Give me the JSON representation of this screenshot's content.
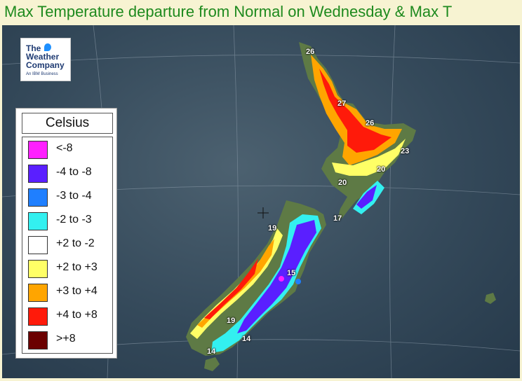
{
  "header": {
    "title": "Max Temperature departure from Normal on Wednesday & Max T"
  },
  "logo": {
    "line1": "The",
    "line2": "Weather",
    "line3": "Company",
    "sub": "An IBM Business"
  },
  "legend": {
    "title": "Celsius",
    "items": [
      {
        "label": "<-8",
        "color": "#ff1fff"
      },
      {
        "label": "-4 to -8",
        "color": "#5a1fff"
      },
      {
        "label": "-3 to -4",
        "color": "#1f7fff"
      },
      {
        "label": "-2 to -3",
        "color": "#33f0f0"
      },
      {
        "label": "+2 to -2",
        "color": "#ffffff"
      },
      {
        "label": "+2 to +3",
        "color": "#ffff66"
      },
      {
        "label": "+3 to +4",
        "color": "#ffa500"
      },
      {
        "label": "+4 to +8",
        "color": "#ff1a0a"
      },
      {
        "label": ">+8",
        "color": "#6b0000"
      }
    ]
  },
  "city_temps": [
    {
      "name": "northland",
      "value": "26"
    },
    {
      "name": "auckland",
      "value": "27"
    },
    {
      "name": "waikato",
      "value": "26"
    },
    {
      "name": "gisborne",
      "value": "23"
    },
    {
      "name": "hawkes-bay",
      "value": "20"
    },
    {
      "name": "taranaki",
      "value": "20"
    },
    {
      "name": "wellington",
      "value": "17"
    },
    {
      "name": "nelson",
      "value": "19"
    },
    {
      "name": "christchurch",
      "value": "15"
    },
    {
      "name": "westland",
      "value": "19"
    },
    {
      "name": "dunedin",
      "value": "14"
    },
    {
      "name": "invercargill",
      "value": "14"
    }
  ]
}
